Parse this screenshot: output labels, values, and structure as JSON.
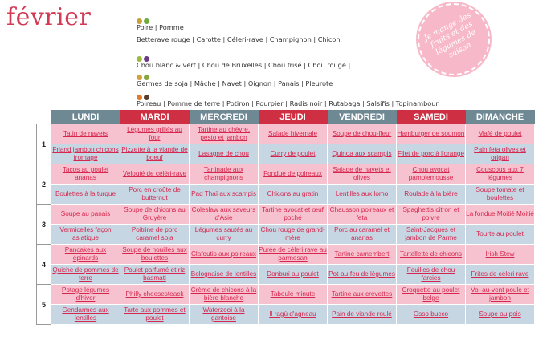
{
  "title": "février",
  "vegetables": [
    "Poire | Pomme",
    "Betterave rouge | Carotte | Céleri-rave | Champignon | Chicon",
    "Chou blanc & vert | Chou de Bruxelles | Chou frisé | Chou rouge |",
    "Germes de soja | Mâche | Navet | Oignon | Panais | Pleurote",
    "Poireau | Pomme de terre | Potiron | Pourpier | Radis noir | Rutabaga | Salsifis | Topinambour"
  ],
  "stamp": "Je mange des fruits et des légumes de saison",
  "days": [
    "LUNDI",
    "MARDI",
    "MERCREDI",
    "JEUDI",
    "VENDREDI",
    "SAMEDI",
    "DIMANCHE"
  ],
  "colors": {
    "lunch_row": "#f7c2cf",
    "dinner_row": "#c6d6e3",
    "header_dark": "#6e8894",
    "header_red": "#cf2f43",
    "link": "#d7264d"
  },
  "weeks": [
    {
      "label": "1",
      "rows": [
        [
          "Tatin de navets",
          "Légumes grillés au four",
          "Tartine au chèvre, pesto et jambon",
          "Salade hivernale",
          "Soupe de chou-fleur",
          "Hamburger de soumon",
          "Mafé de poulet"
        ],
        [
          "Friand jambon chicons fromage",
          "Pizzette à la viande de boeuf",
          "Lasagne de chou",
          "Curry de poulet",
          "Quinoa aux scampis",
          "Filet de porc à l'orange",
          "Pain feta olives et origan"
        ]
      ]
    },
    {
      "label": "2",
      "rows": [
        [
          "Tacos au poulet ananas",
          "Velouté de céléri-rave",
          "Tartinade aux champignons",
          "Fondue de poireaux",
          "Salade de navets et olives",
          "Chou avocat pamplemousse",
          "Couscous aux 7 légumes"
        ],
        [
          "Boulettes à la turque",
          "Porc en croûte de butternut",
          "Pad Thaï aux scampis",
          "Chicons au gratin",
          "Lentilles aux lomo",
          "Roulade à la bière",
          "Soupe tomate et boulettes"
        ]
      ]
    },
    {
      "label": "3",
      "rows": [
        [
          "Soupe au panais",
          "Soupe de chicons au Gruyère",
          "Coleslaw aux saveurs d'Asie",
          "Tartine avocat et œuf poché",
          "Chausson poireaux et feta",
          "Spaghettis citron et poivre",
          "La fondue Moitié Moitié"
        ],
        [
          "Vermicelles façon asiatique",
          "Poitrine de porc caramel soja",
          "Légumes sautés au curry",
          "Chou rouge de grand-mère",
          "Porc au caramel et ananas",
          "Saint-Jacques et jambon de Parme",
          "Tourte au poulet"
        ]
      ]
    },
    {
      "label": "4",
      "rows": [
        [
          "Pancakes aux épinards",
          "Soupe de nouilles aux boulettes",
          "Clafoutis aux poireaux",
          "Purée de céleri rave au parmesan",
          "Tartine camembert",
          "Tartellette de chicons",
          "Irish Stew"
        ],
        [
          "Quiche de pommes de terre",
          "Poulet parfumé et riz basmati",
          "Bolognaise de lentilles",
          "Donburi au poulet",
          "Pot-au-feu de légumes",
          "Feuilles de chou farcies",
          "Frites de céleri rave"
        ]
      ]
    },
    {
      "label": "5",
      "rows": [
        [
          "Potage légumes d'hiver",
          "Philly cheesesteack",
          "Crème de chicons à la bière blanche",
          "Taboulé minute",
          "Tartine aux crevettes",
          "Croquette au poulet belge",
          "Vol-au-vent poule et jambon"
        ],
        [
          "Gendarmes aux lentilles",
          "Tarte aux pommes et poulet",
          "Waterzooi à la gantoise",
          "Il ragù d'agneau",
          "Pain de viande roulé",
          "Osso bucco",
          "Soupe au pois"
        ]
      ]
    }
  ]
}
